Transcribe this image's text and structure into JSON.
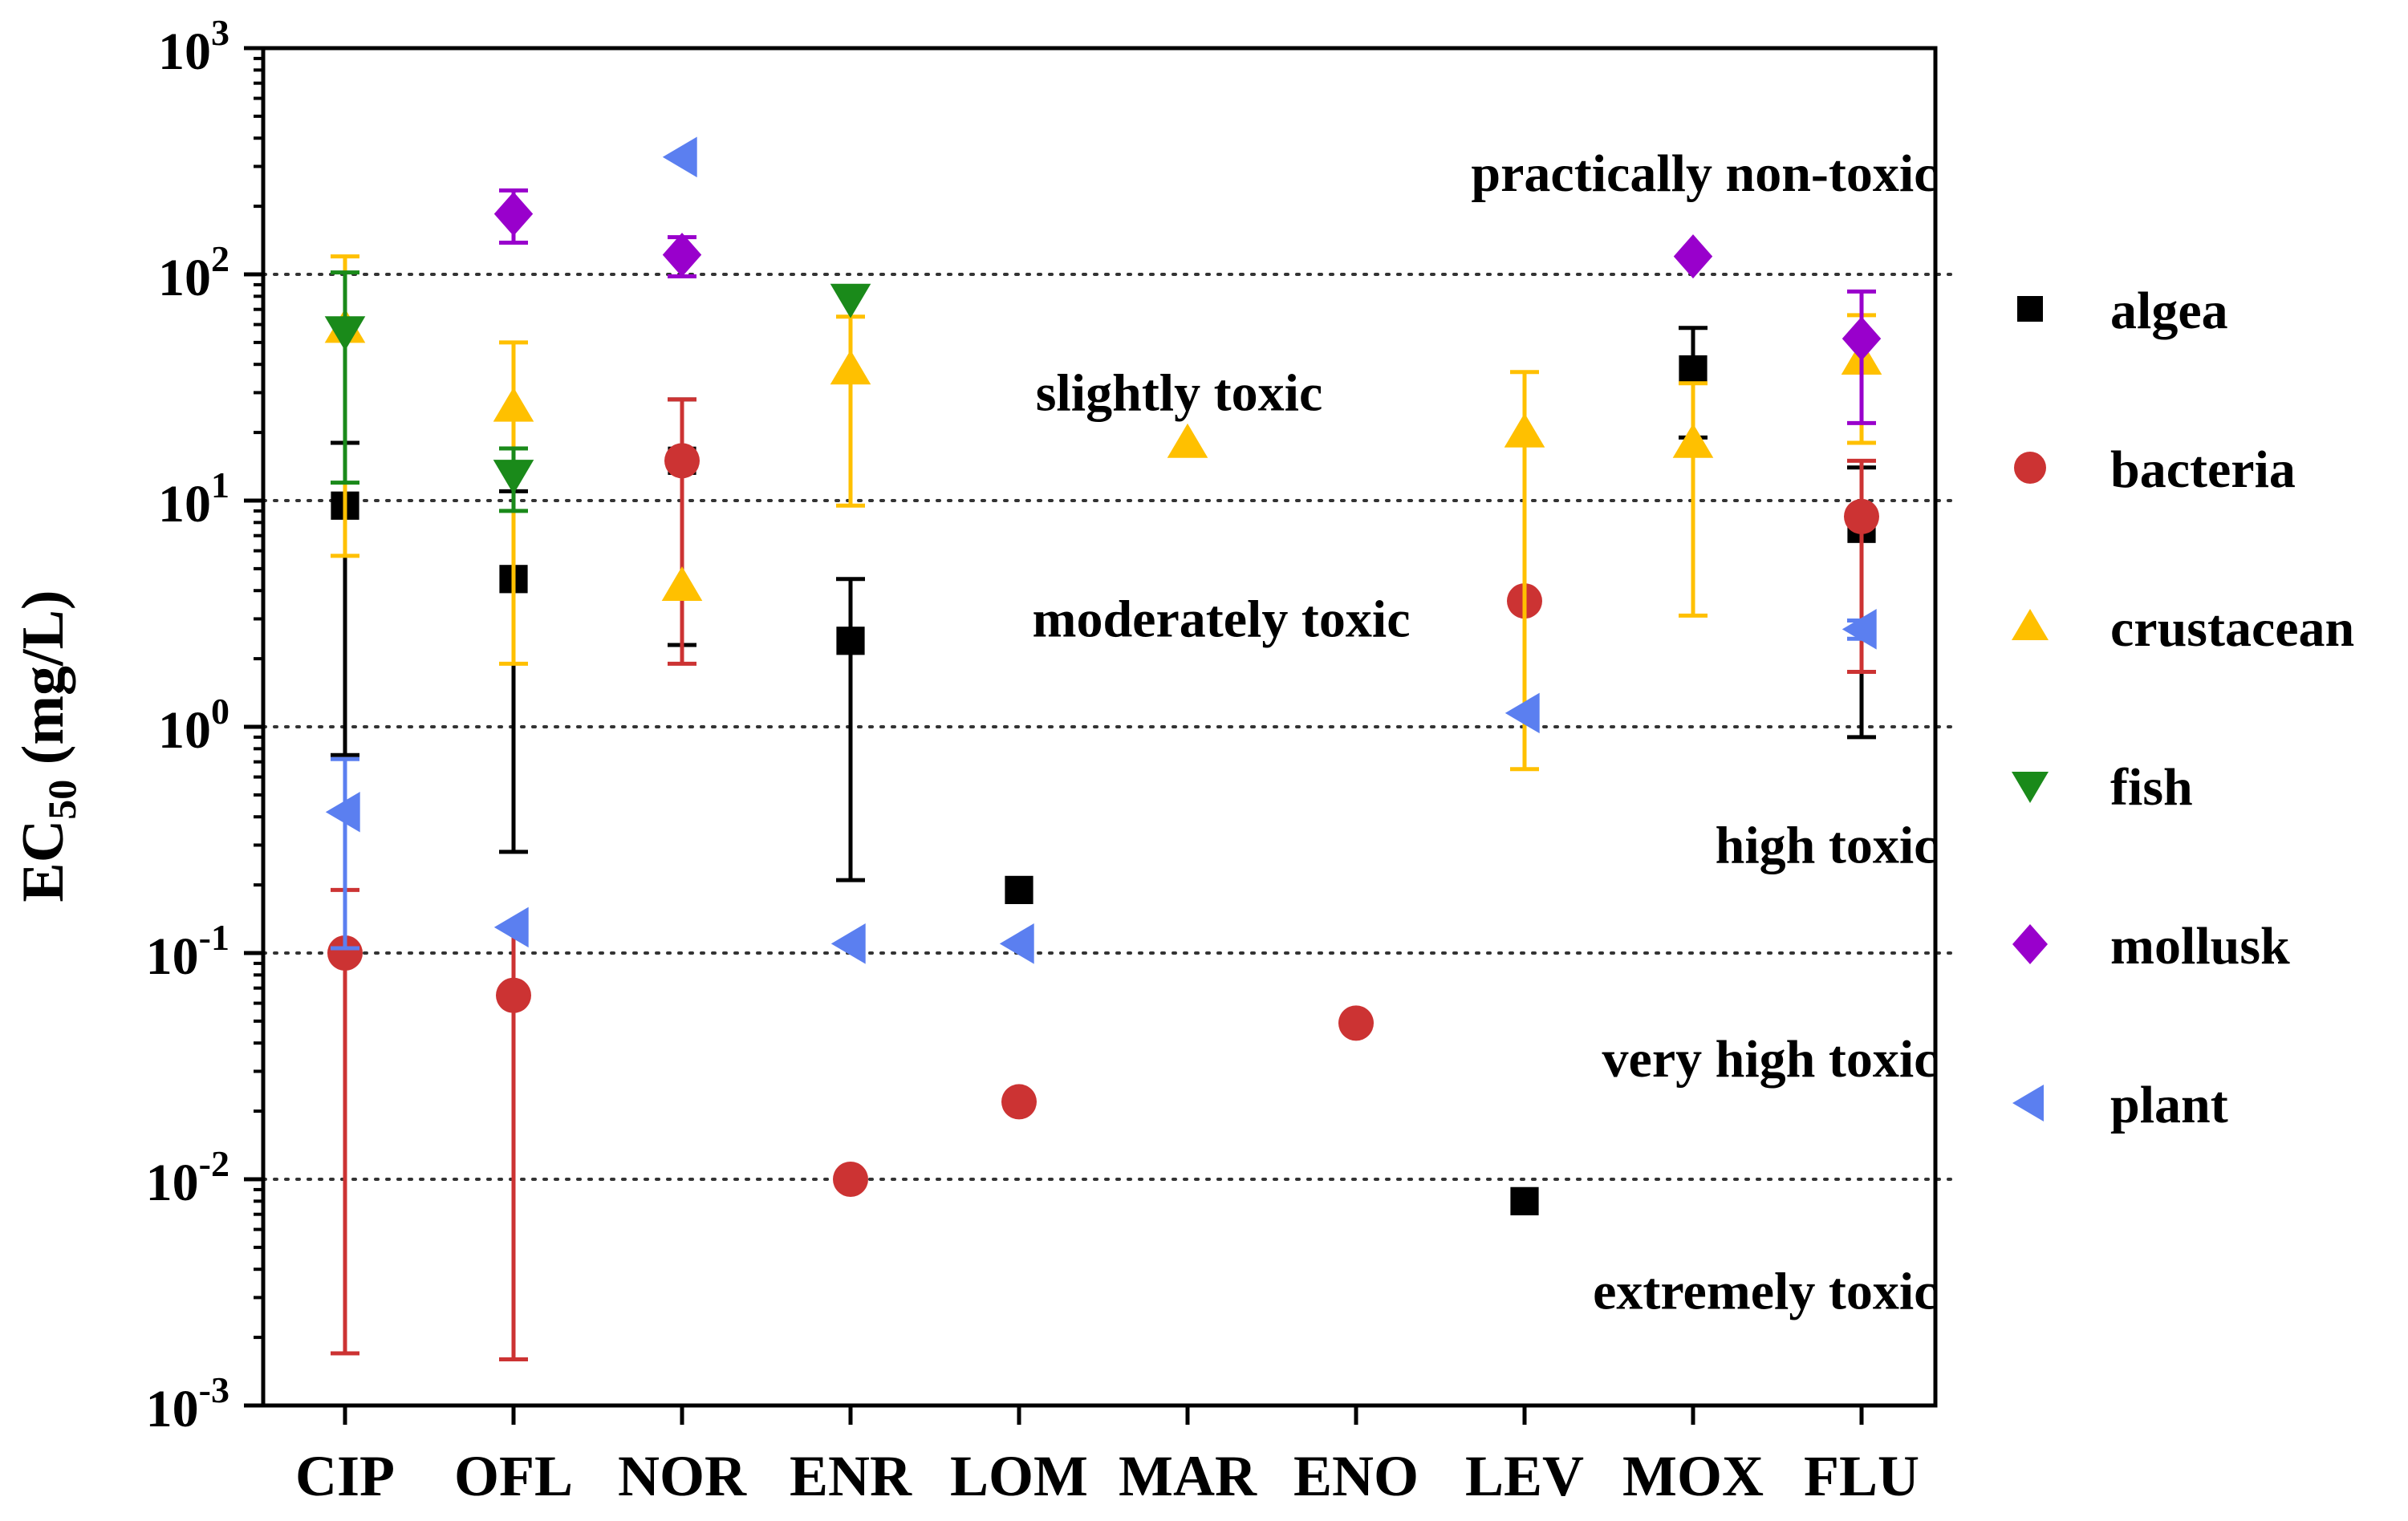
{
  "chart_data": {
    "type": "scatter",
    "yscale": "log",
    "ylabel": {
      "main": "EC",
      "sub": "50",
      "unit": " (mg/L)"
    },
    "ylim": [
      0.001,
      1000
    ],
    "yticks": [
      {
        "value": 0.001,
        "base": "10",
        "exp": "-3"
      },
      {
        "value": 0.01,
        "base": "10",
        "exp": "-2"
      },
      {
        "value": 0.1,
        "base": "10",
        "exp": "-1"
      },
      {
        "value": 1,
        "base": "10",
        "exp": "0"
      },
      {
        "value": 10,
        "base": "10",
        "exp": "1"
      },
      {
        "value": 100,
        "base": "10",
        "exp": "2"
      },
      {
        "value": 1000,
        "base": "10",
        "exp": "3"
      }
    ],
    "categories": [
      "CIP",
      "OFL",
      "NOR",
      "ENR",
      "LOM",
      "MAR",
      "ENO",
      "LEV",
      "MOX",
      "FLU"
    ],
    "thresholds": [
      0.01,
      0.1,
      1,
      10,
      100
    ],
    "zones": [
      {
        "label": "practically non-toxic",
        "y": 280,
        "anchor": "end",
        "xcat": 9.45
      },
      {
        "label": "slightly toxic",
        "y": 30,
        "anchor": "middle",
        "xcat": 4.95
      },
      {
        "label": "moderately toxic",
        "y": 3.0,
        "anchor": "middle",
        "xcat": 5.2
      },
      {
        "label": "high toxic",
        "y": 0.3,
        "anchor": "end",
        "xcat": 9.45
      },
      {
        "label": "very high toxic",
        "y": 0.034,
        "anchor": "end",
        "xcat": 9.45
      },
      {
        "label": "extremely toxic",
        "y": 0.0032,
        "anchor": "end",
        "xcat": 9.45
      }
    ],
    "series": [
      {
        "name": "algea",
        "marker": "square",
        "color": "#000000",
        "points": [
          {
            "cat": 0,
            "y": 9.5,
            "lo": 0.75,
            "hi": 18
          },
          {
            "cat": 1,
            "y": 4.5,
            "lo": 0.28,
            "hi": 11
          },
          {
            "cat": 2,
            "y": 15,
            "lo": 2.3,
            "hi": 28
          },
          {
            "cat": 3,
            "y": 2.4,
            "lo": 0.21,
            "hi": 4.5
          },
          {
            "cat": 4,
            "y": 0.19
          },
          {
            "cat": 7,
            "y": 0.008
          },
          {
            "cat": 8,
            "y": 38,
            "lo": 19,
            "hi": 58
          },
          {
            "cat": 9,
            "y": 7.5,
            "lo": 0.9,
            "hi": 14
          }
        ]
      },
      {
        "name": "bacteria",
        "marker": "circle",
        "color": "#cc3333",
        "points": [
          {
            "cat": 0,
            "y": 0.1,
            "lo": 0.0017,
            "hi": 0.19
          },
          {
            "cat": 1,
            "y": 0.065,
            "lo": 0.0016,
            "hi": 0.13
          },
          {
            "cat": 2,
            "y": 15,
            "lo": 1.9,
            "hi": 28
          },
          {
            "cat": 3,
            "y": 0.01
          },
          {
            "cat": 4,
            "y": 0.022
          },
          {
            "cat": 6,
            "y": 0.049
          },
          {
            "cat": 7,
            "y": 3.6
          },
          {
            "cat": 9,
            "y": 8.5,
            "lo": 1.75,
            "hi": 15
          }
        ]
      },
      {
        "name": "crustacean",
        "marker": "triangle-up",
        "color": "#ffc000",
        "points": [
          {
            "cat": 0,
            "y": 58,
            "lo": 5.7,
            "hi": 120
          },
          {
            "cat": 1,
            "y": 26,
            "lo": 1.9,
            "hi": 50
          },
          {
            "cat": 2,
            "y": 4.2
          },
          {
            "cat": 3,
            "y": 38,
            "lo": 9.5,
            "hi": 65
          },
          {
            "cat": 5,
            "y": 18
          },
          {
            "cat": 7,
            "y": 20,
            "lo": 0.65,
            "hi": 37
          },
          {
            "cat": 8,
            "y": 18,
            "lo": 3.1,
            "hi": 33
          },
          {
            "cat": 9,
            "y": 42,
            "lo": 18,
            "hi": 66
          }
        ]
      },
      {
        "name": "fish",
        "marker": "triangle-down",
        "color": "#1a8a1a",
        "points": [
          {
            "cat": 0,
            "y": 56,
            "lo": 12,
            "hi": 102
          },
          {
            "cat": 1,
            "y": 13,
            "lo": 9,
            "hi": 17
          },
          {
            "cat": 3,
            "y": 78
          }
        ]
      },
      {
        "name": "mollusk",
        "marker": "diamond",
        "color": "#9900cc",
        "points": [
          {
            "cat": 1,
            "y": 185,
            "lo": 138,
            "hi": 235
          },
          {
            "cat": 2,
            "y": 122,
            "lo": 98,
            "hi": 146
          },
          {
            "cat": 8,
            "y": 120
          },
          {
            "cat": 9,
            "y": 52,
            "lo": 22,
            "hi": 84
          }
        ]
      },
      {
        "name": "plant",
        "marker": "triangle-left",
        "color": "#5b7ff0",
        "points": [
          {
            "cat": 0,
            "y": 0.42,
            "lo": 0.105,
            "hi": 0.72
          },
          {
            "cat": 1,
            "y": 0.13
          },
          {
            "cat": 2,
            "y": 330
          },
          {
            "cat": 3,
            "y": 0.11
          },
          {
            "cat": 4,
            "y": 0.11
          },
          {
            "cat": 7,
            "y": 1.15
          },
          {
            "cat": 9,
            "y": 2.7,
            "lo": 2.45,
            "hi": 2.95
          }
        ]
      }
    ],
    "legend": {
      "placement": "right"
    }
  }
}
